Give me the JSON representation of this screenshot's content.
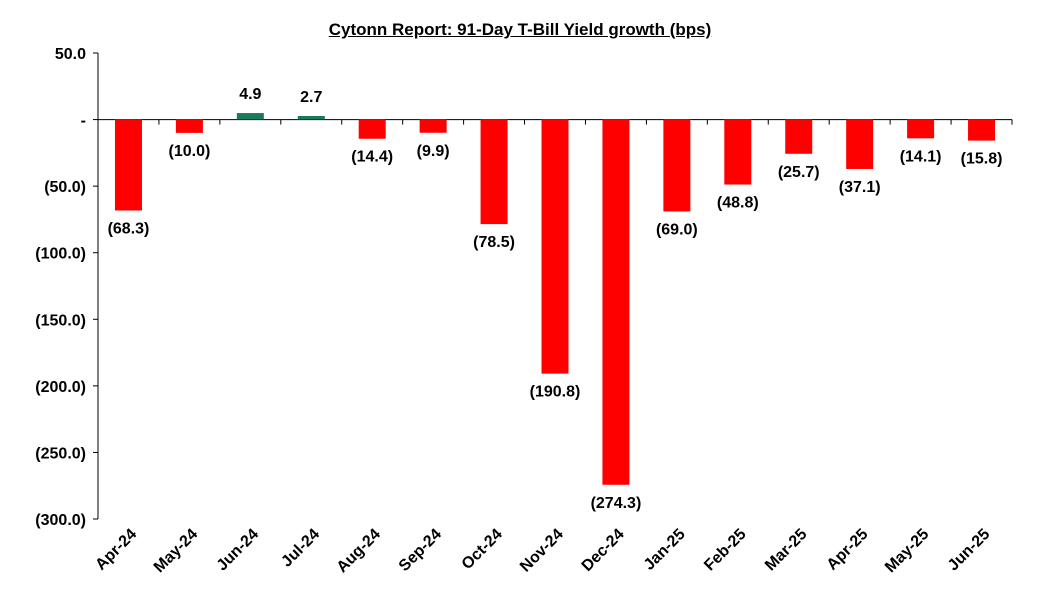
{
  "chart_data": {
    "type": "bar",
    "title": "Cytonn Report:  91-Day T-Bill Yield growth (bps)",
    "categories": [
      "Apr-24",
      "May-24",
      "Jun-24",
      "Jul-24",
      "Aug-24",
      "Sep-24",
      "Oct-24",
      "Nov-24",
      "Dec-24",
      "Jan-25",
      "Feb-25",
      "Mar-25",
      "Apr-25",
      "May-25",
      "Jun-25"
    ],
    "values": [
      -68.3,
      -10.0,
      4.9,
      2.7,
      -14.4,
      -9.9,
      -78.5,
      -190.8,
      -274.3,
      -69.0,
      -48.8,
      -25.7,
      -37.1,
      -14.1,
      -15.8
    ],
    "data_labels": [
      "(68.3)",
      "(10.0)",
      "4.9",
      "2.7",
      "(14.4)",
      "(9.9)",
      "(78.5)",
      "(190.8)",
      "(274.3)",
      "(69.0)",
      "(48.8)",
      "(25.7)",
      "(37.1)",
      "(14.1)",
      "(15.8)"
    ],
    "ylim": [
      -300,
      50
    ],
    "yticks": [
      50,
      0,
      -50,
      -100,
      -150,
      -200,
      -250,
      -300
    ],
    "ytick_labels": [
      "50.0",
      "-",
      "(50.0)",
      "(100.0)",
      "(150.0)",
      "(200.0)",
      "(250.0)",
      "(300.0)"
    ],
    "xlabel": "",
    "ylabel": "",
    "grid": false,
    "legend": "none",
    "colors": {
      "negative": "#ff0000",
      "positive": "#1a7a5a",
      "axis": "#000000"
    }
  }
}
